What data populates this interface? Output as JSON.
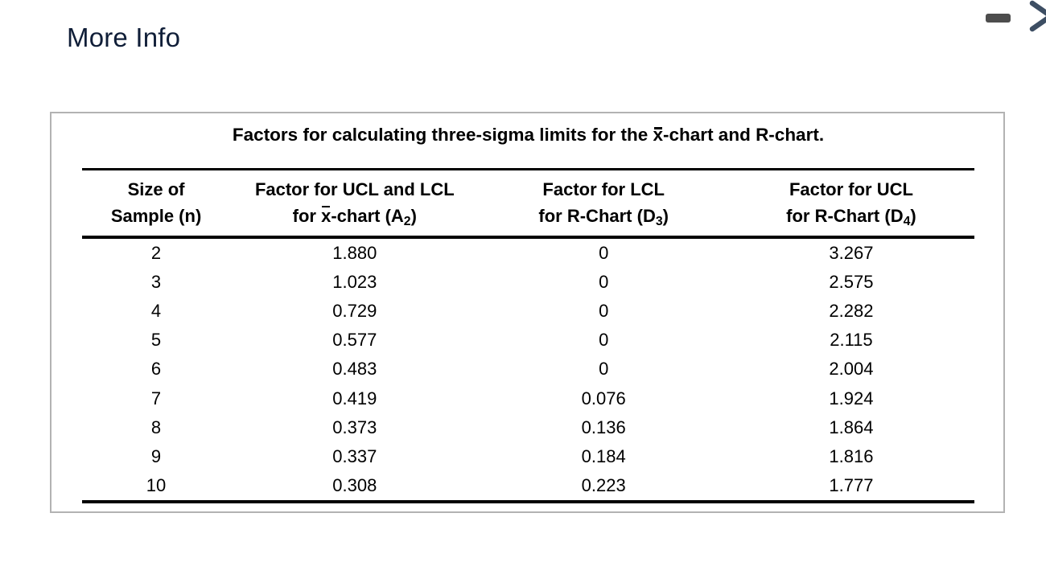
{
  "page": {
    "heading": "More Info"
  },
  "window_controls": {
    "minimize_icon": "minimize",
    "expand_icon": "chevron-right"
  },
  "colors": {
    "heading_text": "#101e38",
    "panel_border": "#b3b3b3",
    "minimize_icon": "#4d4d4d",
    "chevron_icon": "#3d4e63",
    "table_text": "#000000"
  },
  "panel": {
    "title": {
      "pre": "Factors for calculating three-sigma limits for the ",
      "xbar": "x",
      "post": "-chart and R-chart."
    },
    "table": {
      "headers": {
        "col1": {
          "line1": "Size of",
          "line2": "Sample (n)"
        },
        "col2": {
          "line1": "Factor for UCL and LCL",
          "line2_pre": "for ",
          "line2_xbar": "x",
          "line2_mid": "-chart (A",
          "line2_sub": "2",
          "line2_post": ")"
        },
        "col3": {
          "line1": "Factor for LCL",
          "line2_pre": "for R-Chart (D",
          "line2_sub": "3",
          "line2_post": ")"
        },
        "col4": {
          "line1": "Factor for UCL",
          "line2_pre": "for R-Chart (D",
          "line2_sub": "4",
          "line2_post": ")"
        }
      },
      "rows": [
        [
          "2",
          "1.880",
          "0",
          "3.267"
        ],
        [
          "3",
          "1.023",
          "0",
          "2.575"
        ],
        [
          "4",
          "0.729",
          "0",
          "2.282"
        ],
        [
          "5",
          "0.577",
          "0",
          "2.115"
        ],
        [
          "6",
          "0.483",
          "0",
          "2.004"
        ],
        [
          "7",
          "0.419",
          "0.076",
          "1.924"
        ],
        [
          "8",
          "0.373",
          "0.136",
          "1.864"
        ],
        [
          "9",
          "0.337",
          "0.184",
          "1.816"
        ],
        [
          "10",
          "0.308",
          "0.223",
          "1.777"
        ]
      ]
    }
  }
}
